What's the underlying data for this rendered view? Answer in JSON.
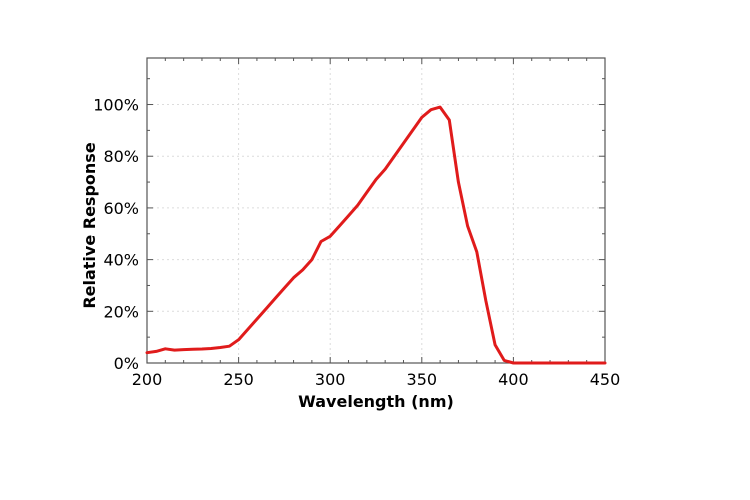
{
  "chart_data": {
    "type": "line",
    "xlabel": "Wavelength (nm)",
    "ylabel": "Relative Response",
    "xlim": [
      200,
      450
    ],
    "ylim": [
      0,
      1.18
    ],
    "xticks": [
      200,
      250,
      300,
      350,
      400,
      450
    ],
    "xtick_labels": [
      "200",
      "250",
      "300",
      "350",
      "400",
      "450"
    ],
    "yticks": [
      0,
      0.2,
      0.4,
      0.6,
      0.8,
      1.0
    ],
    "ytick_labels": [
      "0%",
      "20%",
      "40%",
      "60%",
      "80%",
      "100%"
    ],
    "grid": true,
    "line_color": "#e01b1b",
    "series": [
      {
        "x": [
          200,
          205,
          210,
          215,
          220,
          225,
          230,
          235,
          240,
          245,
          250,
          255,
          260,
          265,
          270,
          275,
          280,
          285,
          290,
          295,
          300,
          305,
          310,
          315,
          320,
          325,
          330,
          335,
          340,
          345,
          350,
          355,
          360,
          365,
          370,
          375,
          380,
          385,
          390,
          395,
          400,
          410,
          420,
          430,
          440,
          450
        ],
        "y": [
          0.04,
          0.045,
          0.055,
          0.05,
          0.052,
          0.053,
          0.054,
          0.056,
          0.06,
          0.065,
          0.09,
          0.13,
          0.17,
          0.21,
          0.25,
          0.29,
          0.33,
          0.36,
          0.4,
          0.47,
          0.49,
          0.53,
          0.57,
          0.61,
          0.66,
          0.71,
          0.75,
          0.8,
          0.85,
          0.9,
          0.95,
          0.98,
          0.99,
          0.94,
          0.7,
          0.53,
          0.43,
          0.24,
          0.07,
          0.01,
          0.0,
          0.0,
          0.0,
          0.0,
          0.0,
          0.0
        ]
      }
    ]
  }
}
